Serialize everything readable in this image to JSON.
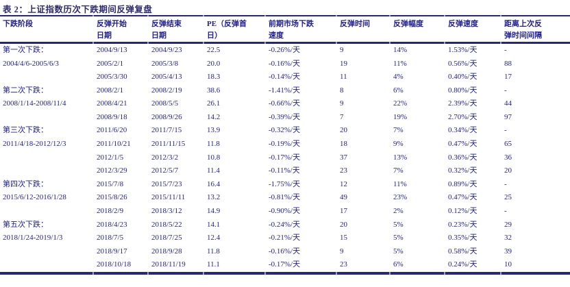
{
  "page": {
    "title": "表 2：上证指数历次下跌期间反弹复盘"
  },
  "colors": {
    "title": "#2e2a6e",
    "text": "#1e1e96",
    "rule": "#262680",
    "tick": "#9c9cc0",
    "background": "#ffffff"
  },
  "table": {
    "columns": [
      {
        "key": "stage",
        "label": "下跌阶段"
      },
      {
        "key": "rebound_start",
        "label": "反弹开始\n日期"
      },
      {
        "key": "rebound_end",
        "label": "反弹结束\n日期"
      },
      {
        "key": "pe_first_day",
        "label": "PE（反弹首\n日）"
      },
      {
        "key": "prior_decline",
        "label": "前期市场下跌\n速度"
      },
      {
        "key": "rebound_days",
        "label": "反弹时间"
      },
      {
        "key": "rebound_amplitude",
        "label": "反弹幅度"
      },
      {
        "key": "rebound_speed",
        "label": "反弹速度"
      },
      {
        "key": "gap_since_last",
        "label": "距离上次反\n弹时间间隔"
      }
    ],
    "rows": [
      [
        "第一次下跌：",
        "2004/9/13",
        "2004/9/23",
        "22.5",
        "-0.26%/天",
        "9",
        "14%",
        "1.53%/天",
        "-"
      ],
      [
        "2004/4/6-2005/6/3",
        "2005/2/1",
        "2005/3/8",
        "20.0",
        "-0.16%/天",
        "19",
        "11%",
        "0.56%/天",
        "88"
      ],
      [
        "",
        "2005/3/30",
        "2005/4/13",
        "18.3",
        "-0.14%/天",
        "11",
        "4%",
        "0.40%/天",
        "17"
      ],
      [
        "第二次下跌：",
        "2008/2/1",
        "2008/2/19",
        "38.6",
        "-1.41%/天",
        "8",
        "6%",
        "0.80%/天",
        "-"
      ],
      [
        "2008/1/14-2008/11/4",
        "2008/4/21",
        "2008/5/5",
        "26.1",
        "-0.66%/天",
        "9",
        "22%",
        "2.39%/天",
        "44"
      ],
      [
        "",
        "2008/9/18",
        "2008/9/26",
        "14.2",
        "-0.39%/天",
        "7",
        "19%",
        "2.70%/天",
        "97"
      ],
      [
        "第三次下跌：",
        "2011/6/20",
        "2011/7/15",
        "13.9",
        "-0.32%/天",
        "20",
        "7%",
        "0.34%/天",
        "-"
      ],
      [
        "2011/4/18-2012/12/3",
        "2011/10/21",
        "2011/11/15",
        "11.8",
        "-0.19%/天",
        "18",
        "9%",
        "0.47%/天",
        "65"
      ],
      [
        "",
        "2012/1/5",
        "2012/3/2",
        "10.8",
        "-0.17%/天",
        "37",
        "13%",
        "0.36%/天",
        "36"
      ],
      [
        "",
        "2012/3/29",
        "2012/5/7",
        "11.4",
        "-0.11%/天",
        "23",
        "7%",
        "0.32%/天",
        "20"
      ],
      [
        "第四次下跌：",
        "2015/7/8",
        "2015/7/23",
        "16.4",
        "-1.75%/天",
        "12",
        "11%",
        "0.89%/天",
        "-"
      ],
      [
        "2015/6/12-2016/1/28",
        "2015/8/26",
        "2015/11/11",
        "13.2",
        "-0.81%/天",
        "49",
        "23%",
        "0.47%/天",
        "25"
      ],
      [
        "",
        "2018/2/9",
        "2018/3/12",
        "14.9",
        "-0.90%/天",
        "17",
        "2%",
        "0.12%/天",
        "-"
      ],
      [
        "第五次下跌：",
        "2018/4/23",
        "2018/5/22",
        "14.1",
        "-0.24%/天",
        "20",
        "5%",
        "0.23%/天",
        "29"
      ],
      [
        "2018/1/24-2019/1/3",
        "2018/7/5",
        "2018/7/25",
        "12.4",
        "-0.21%/天",
        "15",
        "5%",
        "0.35%/天",
        "32"
      ],
      [
        "",
        "2018/9/17",
        "2018/9/28",
        "11.8",
        "-0.16%/天",
        "9",
        "5%",
        "0.58%/天",
        "39"
      ],
      [
        "",
        "2018/10/18",
        "2018/11/19",
        "11.1",
        "-0.17%/天",
        "23",
        "6%",
        "0.24%/天",
        "10"
      ]
    ]
  }
}
